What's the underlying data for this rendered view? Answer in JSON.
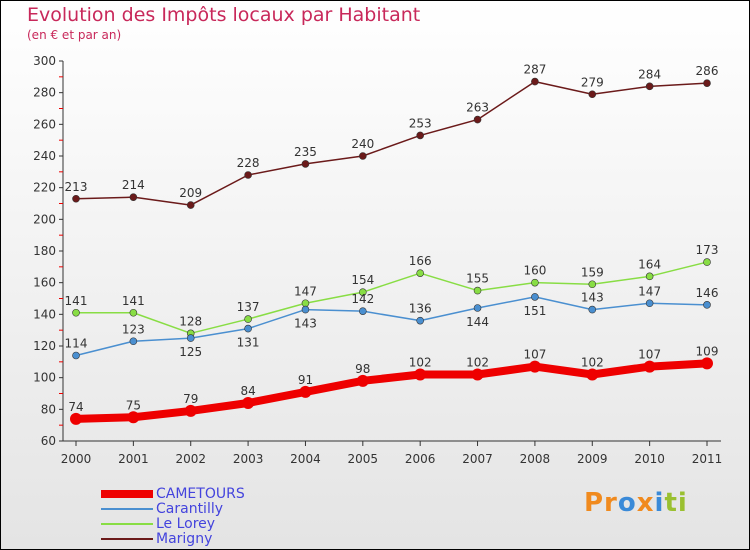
{
  "chart_data": {
    "type": "line",
    "title": "Evolution des Impôts locaux par Habitant",
    "subtitle": "(en € et par an)",
    "x": [
      "2000",
      "2001",
      "2002",
      "2003",
      "2004",
      "2005",
      "2006",
      "2007",
      "2008",
      "2009",
      "2010",
      "2011"
    ],
    "yticks": [
      60,
      80,
      100,
      120,
      140,
      160,
      180,
      200,
      220,
      240,
      260,
      280,
      300
    ],
    "ylim": [
      60,
      300
    ],
    "series": [
      {
        "name": "CAMETOURS",
        "color": "#ee0000",
        "width": 8,
        "values": [
          74,
          75,
          79,
          84,
          91,
          98,
          102,
          102,
          107,
          102,
          107,
          109
        ]
      },
      {
        "name": "Carantilly",
        "color": "#4a8fd0",
        "width": 1.5,
        "values": [
          114,
          123,
          125,
          131,
          143,
          142,
          136,
          144,
          151,
          143,
          147,
          146
        ]
      },
      {
        "name": "Le Lorey",
        "color": "#88dd44",
        "width": 1.5,
        "values": [
          141,
          141,
          128,
          137,
          147,
          154,
          166,
          155,
          160,
          159,
          164,
          173
        ]
      },
      {
        "name": "Marigny",
        "color": "#6b1a1a",
        "width": 1.5,
        "values": [
          213,
          214,
          209,
          228,
          235,
          240,
          253,
          263,
          287,
          279,
          284,
          286
        ]
      }
    ]
  },
  "logo": "Proxiti"
}
